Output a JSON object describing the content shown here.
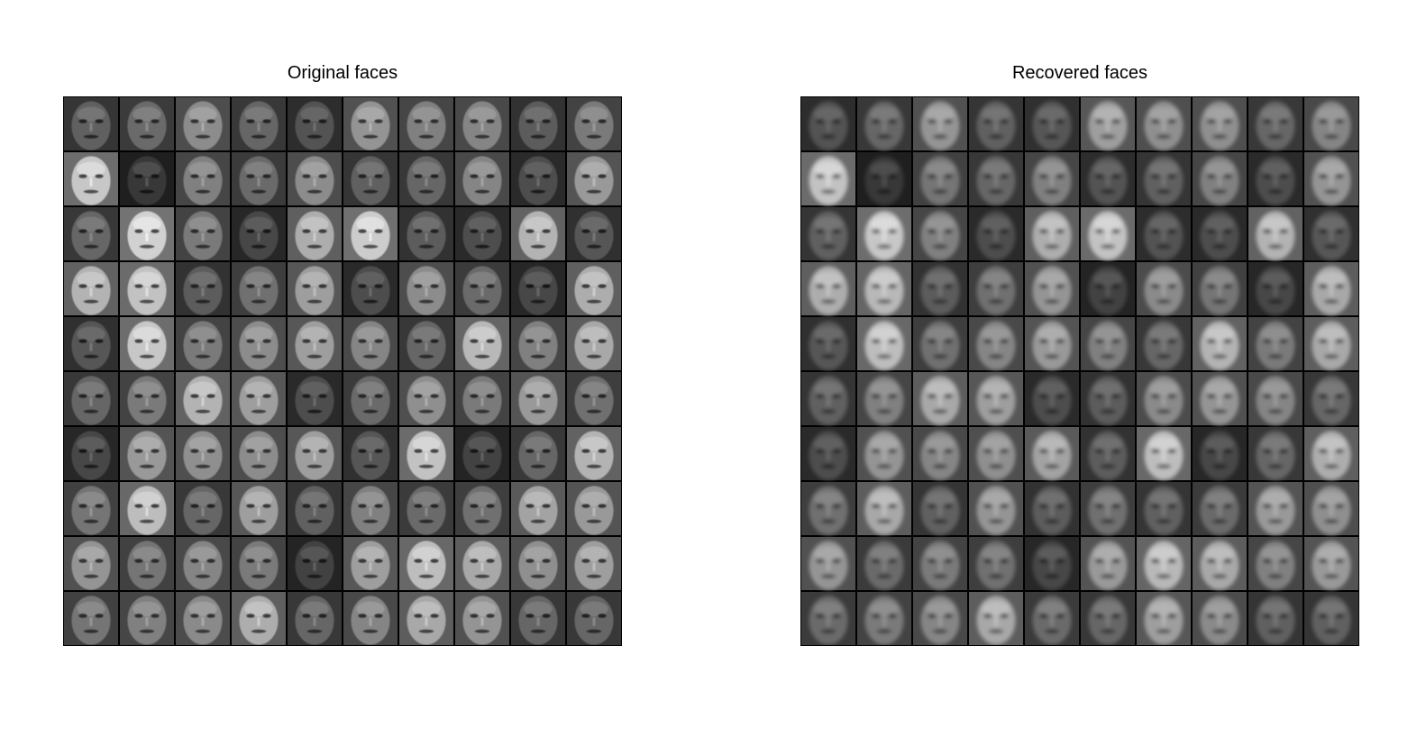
{
  "panels": [
    {
      "id": "original",
      "title": "Original faces",
      "rows": 10,
      "cols": 10,
      "tile_content": "grayscale face photograph (sharp)",
      "brightness": [
        [
          0.38,
          0.42,
          0.55,
          0.4,
          0.32,
          0.58,
          0.5,
          0.52,
          0.36,
          0.48
        ],
        [
          0.78,
          0.22,
          0.5,
          0.42,
          0.55,
          0.38,
          0.4,
          0.52,
          0.3,
          0.6
        ],
        [
          0.4,
          0.82,
          0.48,
          0.28,
          0.68,
          0.8,
          0.36,
          0.3,
          0.7,
          0.34
        ],
        [
          0.7,
          0.76,
          0.36,
          0.44,
          0.62,
          0.3,
          0.55,
          0.42,
          0.28,
          0.68
        ],
        [
          0.34,
          0.78,
          0.48,
          0.55,
          0.62,
          0.52,
          0.4,
          0.72,
          0.5,
          0.66
        ],
        [
          0.4,
          0.48,
          0.7,
          0.62,
          0.3,
          0.42,
          0.56,
          0.48,
          0.6,
          0.44
        ],
        [
          0.28,
          0.6,
          0.56,
          0.55,
          0.62,
          0.34,
          0.76,
          0.26,
          0.4,
          0.7
        ],
        [
          0.46,
          0.74,
          0.4,
          0.62,
          0.38,
          0.5,
          0.42,
          0.44,
          0.64,
          0.6
        ],
        [
          0.58,
          0.46,
          0.52,
          0.48,
          0.26,
          0.62,
          0.74,
          0.66,
          0.56,
          0.62
        ],
        [
          0.46,
          0.5,
          0.54,
          0.68,
          0.4,
          0.52,
          0.66,
          0.58,
          0.4,
          0.4
        ]
      ]
    },
    {
      "id": "recovered",
      "title": "Recovered faces",
      "rows": 10,
      "cols": 10,
      "tile_content": "grayscale face reconstruction (blurred)",
      "brightness": [
        [
          0.32,
          0.4,
          0.58,
          0.38,
          0.34,
          0.62,
          0.56,
          0.56,
          0.4,
          0.52
        ],
        [
          0.76,
          0.22,
          0.46,
          0.4,
          0.5,
          0.32,
          0.38,
          0.5,
          0.3,
          0.58
        ],
        [
          0.38,
          0.78,
          0.5,
          0.3,
          0.68,
          0.76,
          0.32,
          0.3,
          0.7,
          0.34
        ],
        [
          0.68,
          0.72,
          0.36,
          0.44,
          0.58,
          0.26,
          0.54,
          0.46,
          0.28,
          0.66
        ],
        [
          0.34,
          0.74,
          0.44,
          0.52,
          0.6,
          0.5,
          0.4,
          0.7,
          0.48,
          0.66
        ],
        [
          0.38,
          0.5,
          0.66,
          0.62,
          0.3,
          0.36,
          0.54,
          0.58,
          0.52,
          0.4
        ],
        [
          0.3,
          0.58,
          0.52,
          0.56,
          0.64,
          0.36,
          0.74,
          0.28,
          0.4,
          0.68
        ],
        [
          0.44,
          0.66,
          0.38,
          0.58,
          0.36,
          0.44,
          0.38,
          0.42,
          0.6,
          0.56
        ],
        [
          0.58,
          0.42,
          0.48,
          0.44,
          0.28,
          0.6,
          0.72,
          0.66,
          0.5,
          0.6
        ],
        [
          0.42,
          0.48,
          0.52,
          0.66,
          0.42,
          0.4,
          0.62,
          0.54,
          0.38,
          0.38
        ]
      ]
    }
  ],
  "colors": {
    "background": "#ffffff",
    "grid_lines": "#000000",
    "title_text": "#000000"
  }
}
